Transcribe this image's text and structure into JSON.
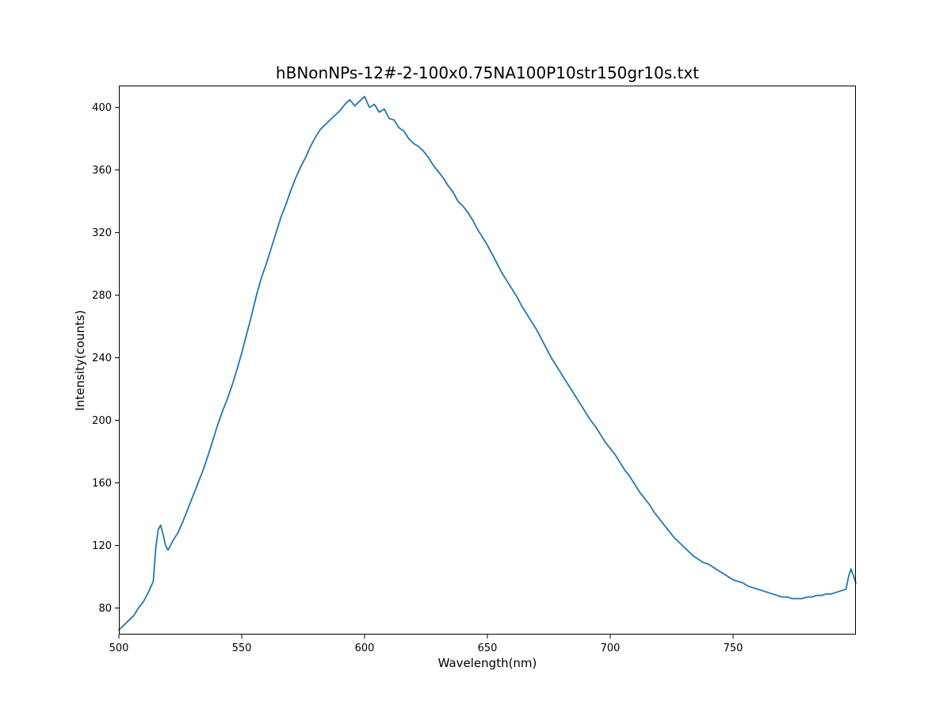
{
  "chart_data": {
    "type": "line",
    "title": "hBNonNPs-12#-2-100x0.75NA100P10str150gr10s.txt",
    "xlabel": "Wavelength(nm)",
    "ylabel": "Intensity(counts)",
    "xlim": [
      500,
      800
    ],
    "ylim": [
      63,
      414
    ],
    "xticks": [
      500,
      550,
      600,
      650,
      700,
      750
    ],
    "yticks": [
      80,
      120,
      160,
      200,
      240,
      280,
      320,
      360,
      400
    ],
    "grid": false,
    "line_color": "#1f77b4",
    "series": [
      {
        "x": [
          500,
          502,
          504,
          506,
          508,
          510,
          512,
          514,
          515,
          516,
          517,
          518,
          519,
          520,
          522,
          524,
          526,
          528,
          530,
          532,
          534,
          536,
          538,
          540,
          542,
          544,
          546,
          548,
          550,
          552,
          554,
          556,
          558,
          560,
          562,
          564,
          566,
          568,
          570,
          572,
          574,
          576,
          578,
          580,
          582,
          584,
          586,
          588,
          590,
          592,
          594,
          596,
          598,
          600,
          602,
          604,
          606,
          608,
          610,
          612,
          614,
          616,
          618,
          620,
          622,
          624,
          626,
          628,
          630,
          632,
          634,
          636,
          638,
          640,
          642,
          644,
          646,
          648,
          650,
          652,
          654,
          656,
          658,
          660,
          662,
          664,
          666,
          668,
          670,
          672,
          674,
          676,
          678,
          680,
          682,
          684,
          686,
          688,
          690,
          692,
          694,
          696,
          698,
          700,
          702,
          704,
          706,
          708,
          710,
          712,
          714,
          716,
          718,
          720,
          722,
          724,
          726,
          728,
          730,
          732,
          734,
          736,
          738,
          740,
          742,
          744,
          746,
          748,
          750,
          752,
          754,
          756,
          758,
          760,
          762,
          764,
          766,
          768,
          770,
          772,
          774,
          776,
          778,
          780,
          782,
          784,
          786,
          788,
          790,
          792,
          794,
          796,
          797,
          798,
          800
        ],
        "y": [
          66,
          69,
          72,
          75,
          80,
          84,
          90,
          97,
          118,
          130,
          133,
          127,
          120,
          117,
          123,
          128,
          135,
          143,
          151,
          159,
          167,
          176,
          186,
          196,
          205,
          213,
          222,
          232,
          243,
          255,
          267,
          280,
          291,
          300,
          310,
          320,
          330,
          338,
          347,
          355,
          362,
          368,
          375,
          381,
          386,
          389,
          392,
          395,
          398,
          402,
          405,
          401,
          404,
          407,
          400,
          402,
          397,
          399,
          393,
          392,
          387,
          385,
          380,
          377,
          375,
          372,
          368,
          363,
          359,
          355,
          350,
          346,
          340,
          337,
          333,
          328,
          322,
          317,
          312,
          306,
          300,
          294,
          289,
          284,
          279,
          273,
          268,
          263,
          258,
          252,
          246,
          240,
          235,
          230,
          225,
          220,
          215,
          210,
          205,
          200,
          196,
          191,
          186,
          182,
          178,
          173,
          168,
          164,
          159,
          154,
          150,
          146,
          141,
          137,
          133,
          129,
          125,
          122,
          119,
          116,
          113,
          111,
          109,
          108,
          106,
          104,
          102,
          100,
          98,
          97,
          96,
          94,
          93,
          92,
          91,
          90,
          89,
          88,
          87,
          87,
          86,
          86,
          86,
          87,
          87,
          88,
          88,
          89,
          89,
          90,
          91,
          92,
          100,
          105,
          96
        ]
      }
    ]
  }
}
